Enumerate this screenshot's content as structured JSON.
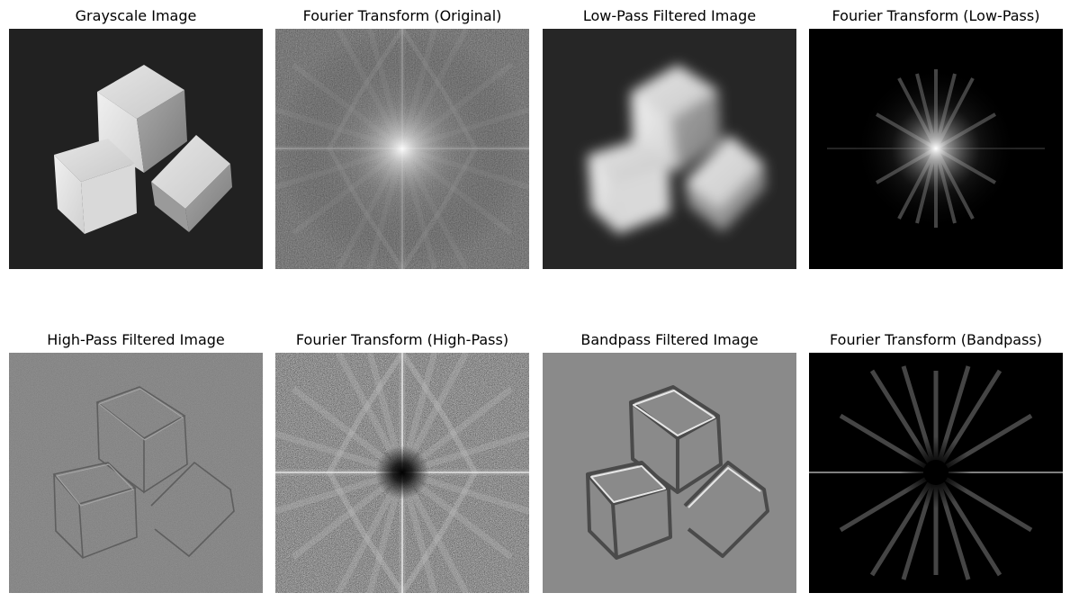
{
  "panels": [
    {
      "title": "Grayscale Image"
    },
    {
      "title": "Fourier Transform (Original)"
    },
    {
      "title": "Low-Pass Filtered Image"
    },
    {
      "title": "Fourier Transform (Low-Pass)"
    },
    {
      "title": "High-Pass Filtered Image"
    },
    {
      "title": "Fourier Transform (High-Pass)"
    },
    {
      "title": "Bandpass Filtered Image"
    },
    {
      "title": "Fourier Transform (Bandpass)"
    }
  ]
}
